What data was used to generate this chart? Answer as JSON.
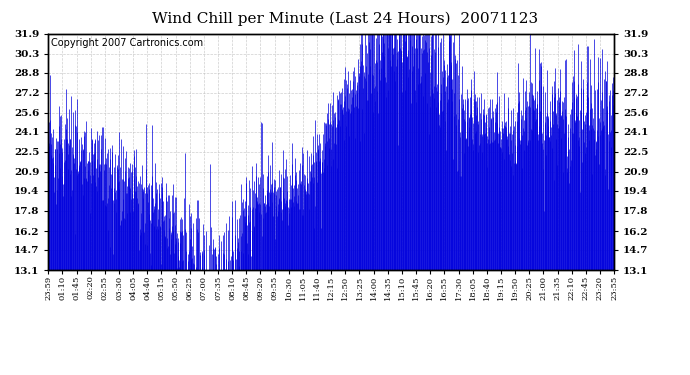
{
  "title": "Wind Chill per Minute (Last 24 Hours)  20071123",
  "copyright": "Copyright 2007 Cartronics.com",
  "yticks": [
    13.1,
    14.7,
    16.2,
    17.8,
    19.4,
    20.9,
    22.5,
    24.1,
    25.6,
    27.2,
    28.8,
    30.3,
    31.9
  ],
  "ymin": 13.1,
  "ymax": 31.9,
  "line_color": "#0000dd",
  "bg_color": "#ffffff",
  "plot_bg_color": "#ffffff",
  "grid_color": "#bbbbbb",
  "title_fontsize": 11,
  "copyright_fontsize": 7,
  "xtick_labels": [
    "23:59",
    "01:10",
    "01:45",
    "02:20",
    "02:55",
    "03:30",
    "04:05",
    "04:40",
    "05:15",
    "05:50",
    "06:25",
    "07:00",
    "07:35",
    "08:10",
    "08:45",
    "09:20",
    "09:55",
    "10:30",
    "11:05",
    "11:40",
    "12:15",
    "12:50",
    "13:25",
    "14:00",
    "14:35",
    "15:10",
    "15:45",
    "16:20",
    "16:55",
    "17:30",
    "18:05",
    "18:40",
    "19:15",
    "19:50",
    "20:25",
    "21:00",
    "21:35",
    "22:10",
    "22:45",
    "23:20",
    "23:55"
  ],
  "figwidth": 6.9,
  "figheight": 3.75,
  "dpi": 100
}
